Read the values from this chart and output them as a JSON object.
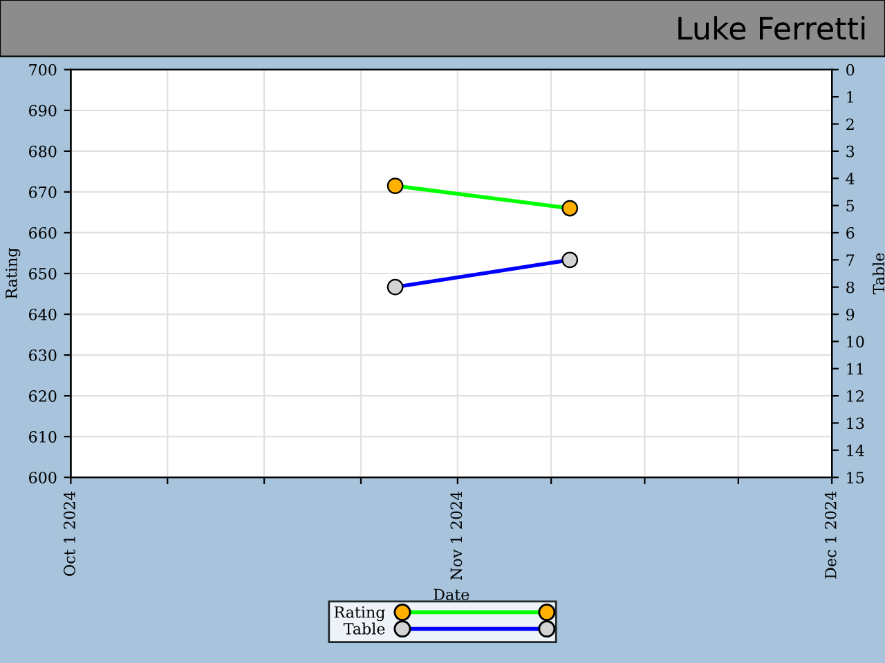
{
  "chart_data": {
    "type": "line",
    "title": "Luke Ferretti",
    "xlabel": "Date",
    "ylabel": "Rating",
    "y2label": "Table",
    "x": [
      "2024-10-27",
      "2024-11-10"
    ],
    "series": [
      {
        "name": "Rating",
        "color": "#00ff00",
        "colors": [
          "#ffb000",
          "#ffb000"
        ],
        "values": [
          671.5,
          666
        ]
      },
      {
        "name": "Table",
        "color": "#0000ff",
        "colors": [
          "#d3d3d3",
          "#d3d3d3"
        ],
        "values": [
          8,
          7
        ],
        "axis": "y2"
      }
    ],
    "xlim": [
      "2024-10-01",
      "2024-12-01"
    ],
    "xticks": [
      {
        "value": "2024-10-01",
        "label": "Oct 1 2024"
      },
      {
        "value": "2024-10-08T18:00",
        "label": null
      },
      {
        "value": "2024-10-16T12:00",
        "label": null
      },
      {
        "value": "2024-10-24T06:00",
        "label": null
      },
      {
        "value": "2024-11-01",
        "label": "Nov 1 2024"
      },
      {
        "value": "2024-11-08T12:00",
        "label": null
      },
      {
        "value": "2024-11-16",
        "label": null
      },
      {
        "value": "2024-11-23T12:00",
        "label": null
      },
      {
        "value": "2024-12-01",
        "label": "Dec 1 2024"
      }
    ],
    "ylim": [
      600,
      700
    ],
    "yticks": [
      600,
      610,
      620,
      630,
      640,
      650,
      660,
      670,
      680,
      690,
      700
    ],
    "y2lim": [
      15,
      0
    ],
    "y2ticks": [
      0,
      1,
      2,
      3,
      4,
      5,
      6,
      7,
      8,
      9,
      10,
      11,
      12,
      13,
      14,
      15
    ],
    "grid": true,
    "legend": "bottom",
    "marker": "circle",
    "line_style": "solid"
  }
}
